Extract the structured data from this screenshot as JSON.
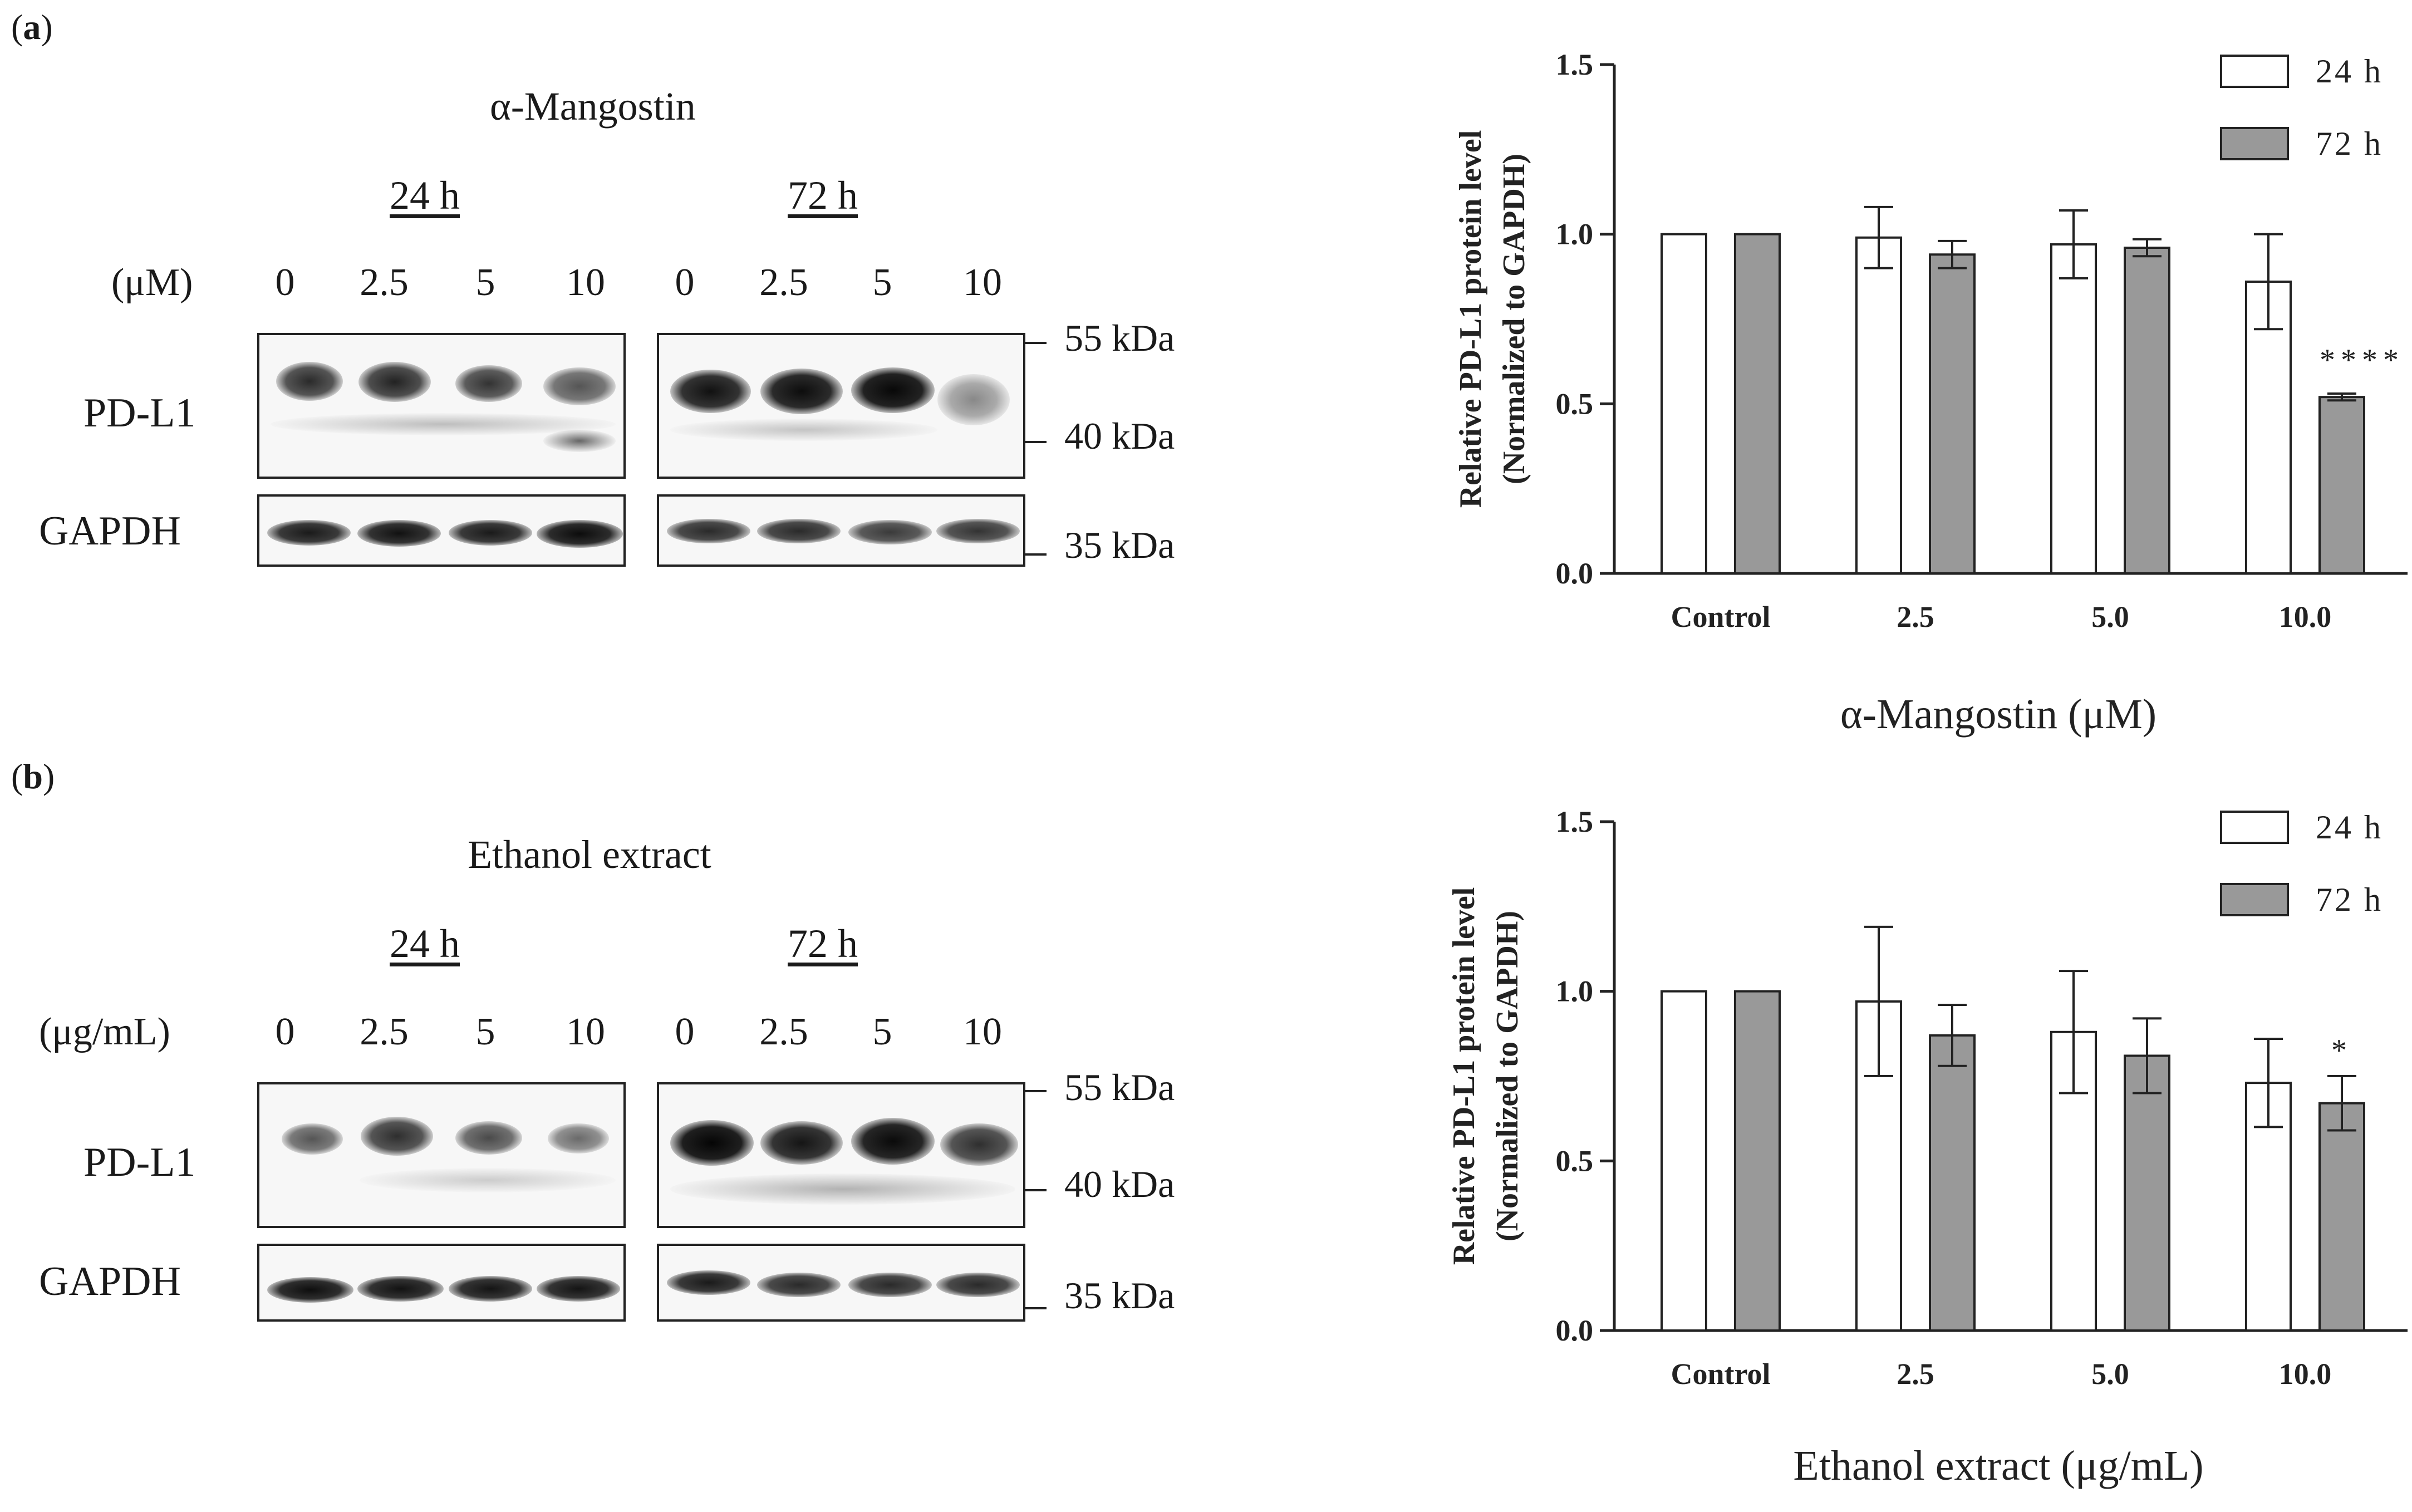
{
  "chart_data": [
    {
      "type": "bar",
      "panel_label": "a",
      "blot": {
        "title": "α-Mangostin",
        "time_groups": [
          "24 h",
          "72 h"
        ],
        "unit_label": "(μM)",
        "lanes": [
          "0",
          "2.5",
          "5",
          "10"
        ],
        "rows": [
          "PD-L1",
          "GAPDH"
        ],
        "markers": [
          "55 kDa",
          "40 kDa",
          "35 kDa"
        ]
      },
      "title": "",
      "xlabel": "α-Mangostin (μM)",
      "ylabel_line1": "Relative PD-L1 protein level",
      "ylabel_line2": "(Normalized to GAPDH)",
      "ylim": [
        0,
        1.5
      ],
      "yticks": [
        "0.0",
        "0.5",
        "1.0",
        "1.5"
      ],
      "categories": [
        "Control",
        "2.5",
        "5.0",
        "10.0"
      ],
      "legend": [
        "24 h",
        "72 h"
      ],
      "series": [
        {
          "name": "24 h",
          "color": "#ffffff",
          "values": [
            1.0,
            0.99,
            0.97,
            0.86
          ],
          "errors": [
            0,
            0.09,
            0.1,
            0.14
          ],
          "annotations": [
            "",
            "",
            "",
            ""
          ]
        },
        {
          "name": "72 h",
          "color": "#999999",
          "values": [
            1.0,
            0.94,
            0.96,
            0.52
          ],
          "errors": [
            0,
            0.04,
            0.025,
            0.01
          ],
          "annotations": [
            "",
            "",
            "",
            "****"
          ]
        }
      ]
    },
    {
      "type": "bar",
      "panel_label": "b",
      "blot": {
        "title": "Ethanol extract",
        "time_groups": [
          "24 h",
          "72 h"
        ],
        "unit_label": "(μg/mL)",
        "lanes": [
          "0",
          "2.5",
          "5",
          "10"
        ],
        "rows": [
          "PD-L1",
          "GAPDH"
        ],
        "markers": [
          "55 kDa",
          "40 kDa",
          "35 kDa"
        ]
      },
      "title": "",
      "xlabel": "Ethanol extract (μg/mL)",
      "ylabel_line1": "Relative PD-L1 protein level",
      "ylabel_line2": "(Normalized to GAPDH)",
      "ylim": [
        0,
        1.5
      ],
      "yticks": [
        "0.0",
        "0.5",
        "1.0",
        "1.5"
      ],
      "categories": [
        "Control",
        "2.5",
        "5.0",
        "10.0"
      ],
      "legend": [
        "24 h",
        "72 h"
      ],
      "series": [
        {
          "name": "24 h",
          "color": "#ffffff",
          "values": [
            1.0,
            0.97,
            0.88,
            0.73
          ],
          "errors": [
            0,
            0.22,
            0.18,
            0.13
          ],
          "annotations": [
            "",
            "",
            "",
            ""
          ]
        },
        {
          "name": "72 h",
          "color": "#999999",
          "values": [
            1.0,
            0.87,
            0.81,
            0.67
          ],
          "errors": [
            0,
            0.09,
            0.11,
            0.08
          ],
          "annotations": [
            "",
            "",
            "",
            "*"
          ]
        }
      ]
    }
  ],
  "colors": {
    "bar_24h": "#ffffff",
    "bar_72h": "#999999",
    "axis": "#222222",
    "blot_bg": "#f7f7f7"
  }
}
